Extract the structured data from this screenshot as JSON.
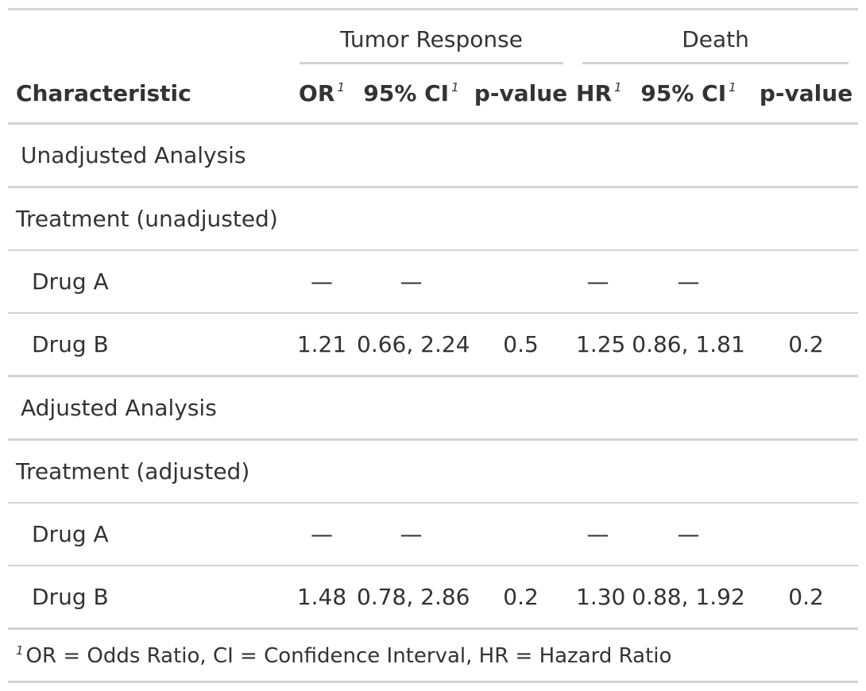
{
  "spanners": {
    "tumor": "Tumor Response",
    "death": "Death"
  },
  "columns": {
    "characteristic": "Characteristic",
    "or": "OR",
    "ci1": "95% CI",
    "p1": "p-value",
    "hr": "HR",
    "ci2": "95% CI",
    "p2": "p-value",
    "footnote_mark": "1"
  },
  "groups": [
    {
      "label": "Unadjusted Analysis",
      "variable": "Treatment (unadjusted)",
      "rows": [
        {
          "label": "Drug A",
          "or": "—",
          "ci1": "—",
          "p1": "",
          "hr": "—",
          "ci2": "—",
          "p2": ""
        },
        {
          "label": "Drug B",
          "or": "1.21",
          "ci1": "0.66, 2.24",
          "p1": "0.5",
          "hr": "1.25",
          "ci2": "0.86, 1.81",
          "p2": "0.2"
        }
      ]
    },
    {
      "label": "Adjusted Analysis",
      "variable": "Treatment (adjusted)",
      "rows": [
        {
          "label": "Drug A",
          "or": "—",
          "ci1": "—",
          "p1": "",
          "hr": "—",
          "ci2": "—",
          "p2": ""
        },
        {
          "label": "Drug B",
          "or": "1.48",
          "ci1": "0.78, 2.86",
          "p1": "0.2",
          "hr": "1.30",
          "ci2": "0.88, 1.92",
          "p2": "0.2"
        }
      ]
    }
  ],
  "footnote": {
    "mark": "1",
    "text": "OR = Odds Ratio, CI = Confidence Interval, HR = Hazard Ratio"
  }
}
